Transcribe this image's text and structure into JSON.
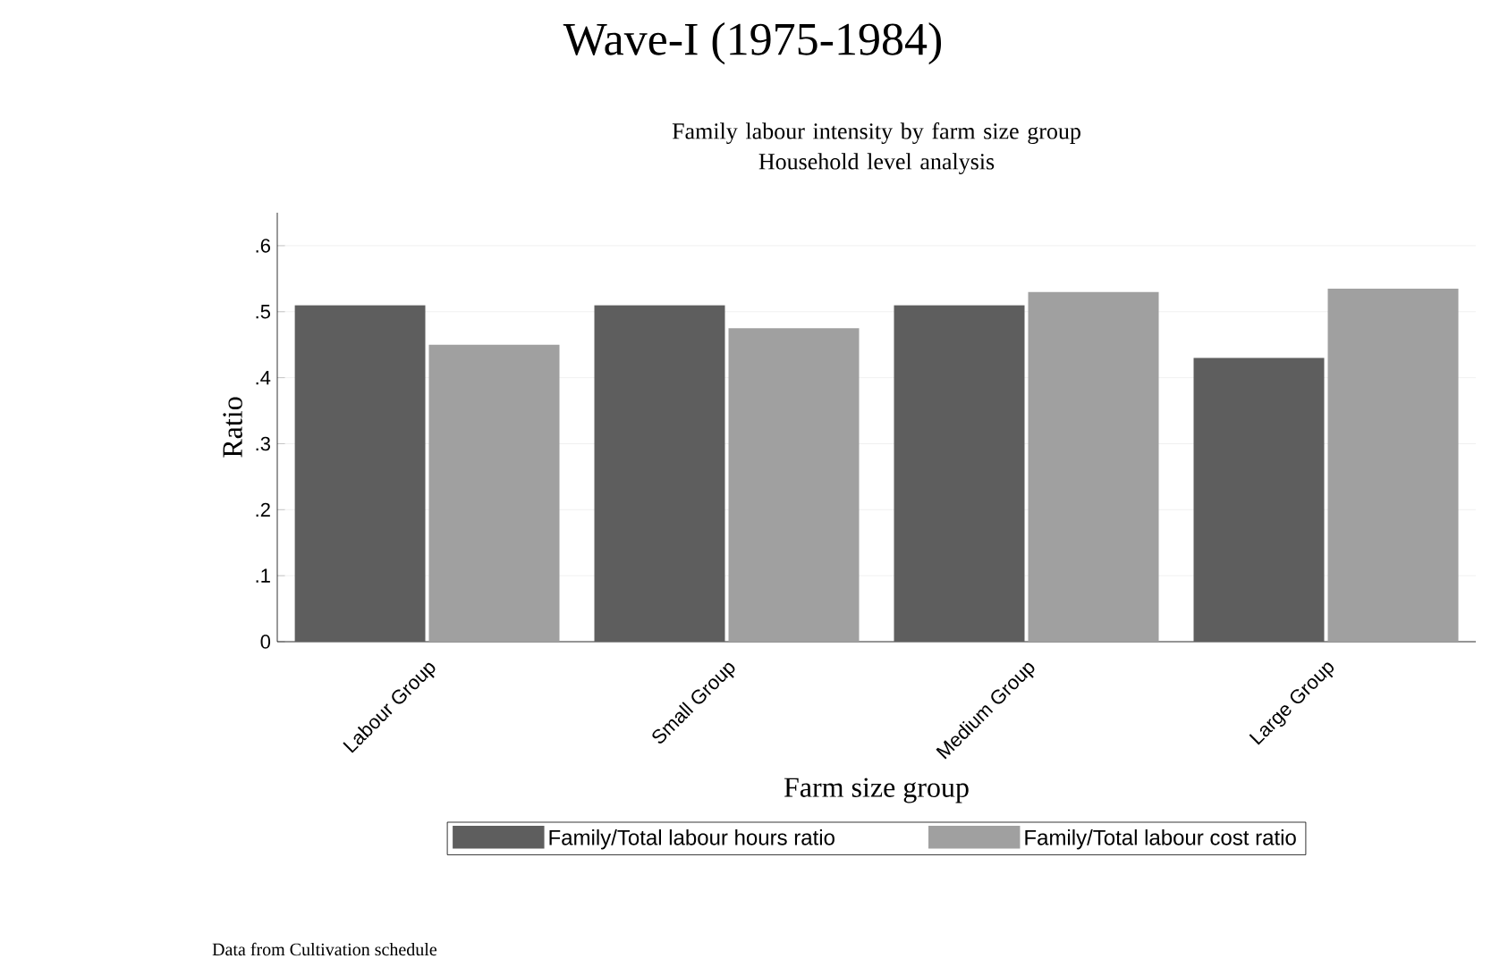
{
  "chart_data": {
    "type": "bar",
    "title": "Wave-I (1975-1984)",
    "subtitle": "Family labour intensity by farm size group\nHousehold level analysis",
    "xlabel": "Farm size group",
    "ylabel": "Ratio",
    "categories": [
      "Labour Group",
      "Small Group",
      "Medium Group",
      "Large Group"
    ],
    "series": [
      {
        "name": "Family/Total labour hours ratio",
        "color": "#5e5e5e",
        "values": [
          0.51,
          0.51,
          0.51,
          0.43
        ]
      },
      {
        "name": "Family/Total labour cost ratio",
        "color": "#a0a0a0",
        "values": [
          0.45,
          0.475,
          0.53,
          0.535
        ]
      }
    ],
    "ylim": [
      0,
      0.65
    ],
    "yticks": [
      0,
      {
        "value": 0.1,
        "label": ".1"
      },
      {
        "value": 0.2,
        "label": ".2"
      },
      {
        "value": 0.3,
        "label": ".3"
      },
      {
        "value": 0.4,
        "label": ".4"
      },
      {
        "value": 0.5,
        "label": ".5"
      },
      {
        "value": 0.6,
        "label": ".6"
      }
    ],
    "grid": "y",
    "legend": "bottom",
    "annotations": [
      "Data from Cultivation schedule"
    ]
  }
}
